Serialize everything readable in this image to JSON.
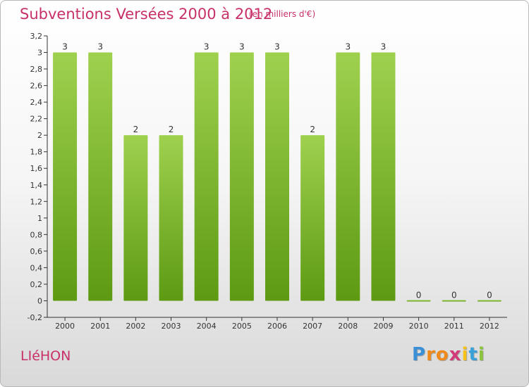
{
  "title": "Subventions Versées 2000 à 2012",
  "subtitle": "(en milliers d'€)",
  "commune": "LIéHON",
  "logo": {
    "letters": [
      "P",
      "r",
      "o",
      "x",
      "i",
      "t",
      "i"
    ],
    "colors": [
      "#3a8fd6",
      "#f08a1c",
      "#f08a1c",
      "#d23a7a",
      "#f5c21a",
      "#3aa0d8",
      "#8cc43a"
    ]
  },
  "chart_data": {
    "type": "bar",
    "categories": [
      "2000",
      "2001",
      "2002",
      "2003",
      "2004",
      "2005",
      "2006",
      "2007",
      "2008",
      "2009",
      "2010",
      "2011",
      "2012"
    ],
    "values": [
      3,
      3,
      2,
      2,
      3,
      3,
      3,
      2,
      3,
      3,
      0,
      0,
      0
    ],
    "data_labels": [
      "3",
      "3",
      "2",
      "2",
      "3",
      "3",
      "3",
      "2",
      "3",
      "3",
      "0",
      "0",
      "0"
    ],
    "yticks": [
      "-0,2",
      "0",
      "0,2",
      "0,4",
      "0,6",
      "0,8",
      "1",
      "1,2",
      "1,4",
      "1,6",
      "1,8",
      "2",
      "2,2",
      "2,4",
      "2,6",
      "2,8",
      "3",
      "3,2"
    ],
    "ytick_values": [
      -0.2,
      0,
      0.2,
      0.4,
      0.6,
      0.8,
      1,
      1.2,
      1.4,
      1.6,
      1.8,
      2,
      2.2,
      2.4,
      2.6,
      2.8,
      3,
      3.2
    ],
    "ylim": [
      -0.2,
      3.2
    ],
    "grid": false,
    "bar_color_top": "#9fd14f",
    "bar_color_bottom": "#5d9a12",
    "title": "Subventions Versées 2000 à 2012",
    "xlabel": "",
    "ylabel": ""
  }
}
